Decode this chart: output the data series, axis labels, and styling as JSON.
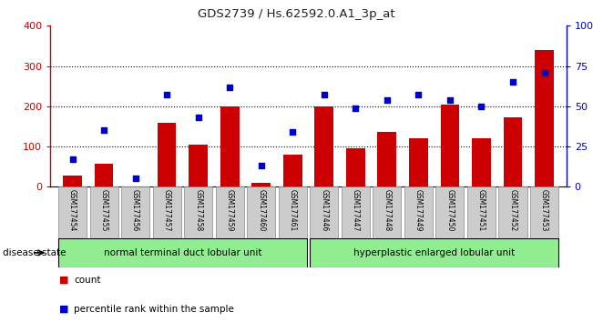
{
  "title": "GDS2739 / Hs.62592.0.A1_3p_at",
  "samples": [
    "GSM177454",
    "GSM177455",
    "GSM177456",
    "GSM177457",
    "GSM177458",
    "GSM177459",
    "GSM177460",
    "GSM177461",
    "GSM177446",
    "GSM177447",
    "GSM177448",
    "GSM177449",
    "GSM177450",
    "GSM177451",
    "GSM177452",
    "GSM177453"
  ],
  "counts": [
    28,
    57,
    -5,
    160,
    105,
    200,
    10,
    80,
    200,
    95,
    137,
    120,
    205,
    120,
    172,
    340
  ],
  "percentiles": [
    17,
    35,
    5,
    57,
    43,
    62,
    13,
    34,
    57,
    49,
    54,
    57,
    54,
    50,
    65,
    71
  ],
  "group1_label": "normal terminal duct lobular unit",
  "group2_label": "hyperplastic enlarged lobular unit",
  "group1_count": 8,
  "group2_count": 8,
  "bar_color": "#cc0000",
  "dot_color": "#0000cc",
  "ylim_left": [
    0,
    400
  ],
  "ylim_right": [
    0,
    100
  ],
  "yticks_left": [
    0,
    100,
    200,
    300,
    400
  ],
  "yticks_right": [
    0,
    25,
    50,
    75,
    100
  ],
  "yticklabels_right": [
    "0",
    "25",
    "50",
    "75",
    "100%"
  ],
  "group1_color": "#90ee90",
  "group2_color": "#90ee90",
  "legend_count_label": "count",
  "legend_pct_label": "percentile rank within the sample",
  "disease_state_label": "disease state",
  "right_axis_color": "#0000cc",
  "tick_label_bg": "#cccccc"
}
